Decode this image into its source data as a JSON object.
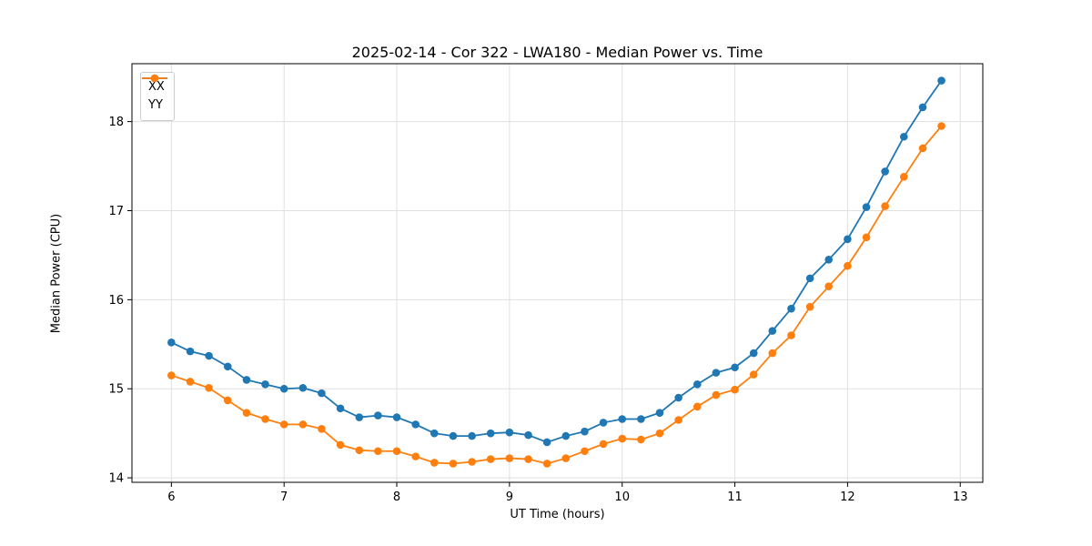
{
  "chart_data": {
    "type": "line",
    "title": "2025-02-14 - Cor 322 - LWA180 - Median Power vs. Time",
    "xlabel": "UT Time (hours)",
    "ylabel": "Median Power (CPU)",
    "xlim": [
      5.65,
      13.2
    ],
    "ylim": [
      13.95,
      18.65
    ],
    "xticks": [
      6,
      7,
      8,
      9,
      10,
      11,
      12,
      13
    ],
    "yticks": [
      14,
      15,
      16,
      17,
      18
    ],
    "grid": true,
    "legend_position": "upper-left",
    "x": [
      6.0,
      6.167,
      6.333,
      6.5,
      6.667,
      6.833,
      7.0,
      7.167,
      7.333,
      7.5,
      7.667,
      7.833,
      8.0,
      8.167,
      8.333,
      8.5,
      8.667,
      8.833,
      9.0,
      9.167,
      9.333,
      9.5,
      9.667,
      9.833,
      10.0,
      10.167,
      10.333,
      10.5,
      10.667,
      10.833,
      11.0,
      11.167,
      11.333,
      11.5,
      11.667,
      11.833,
      12.0,
      12.167,
      12.333,
      12.5,
      12.667,
      12.833
    ],
    "series": [
      {
        "name": "XX",
        "color": "#1f77b4",
        "values": [
          15.52,
          15.42,
          15.37,
          15.25,
          15.1,
          15.05,
          15.0,
          15.01,
          14.95,
          14.78,
          14.68,
          14.7,
          14.68,
          14.6,
          14.5,
          14.47,
          14.47,
          14.5,
          14.51,
          14.48,
          14.4,
          14.47,
          14.52,
          14.62,
          14.66,
          14.66,
          14.73,
          14.9,
          15.05,
          15.18,
          15.24,
          15.4,
          15.65,
          15.9,
          16.24,
          16.45,
          16.68,
          17.04,
          17.44,
          17.83,
          18.16,
          18.46
        ]
      },
      {
        "name": "YY",
        "color": "#ff7f0e",
        "values": [
          15.15,
          15.08,
          15.01,
          14.87,
          14.73,
          14.66,
          14.6,
          14.6,
          14.55,
          14.37,
          14.31,
          14.3,
          14.3,
          14.24,
          14.17,
          14.16,
          14.18,
          14.21,
          14.22,
          14.21,
          14.16,
          14.22,
          14.3,
          14.38,
          14.44,
          14.43,
          14.5,
          14.65,
          14.8,
          14.93,
          14.99,
          15.16,
          15.4,
          15.6,
          15.92,
          16.15,
          16.38,
          16.7,
          17.05,
          17.38,
          17.7,
          17.95
        ]
      }
    ],
    "style": {
      "grid_color": "#e0e0e0",
      "spine_color": "#000000",
      "tick_label_size": 13,
      "marker_radius": 4.3,
      "line_width": 1.8
    }
  }
}
